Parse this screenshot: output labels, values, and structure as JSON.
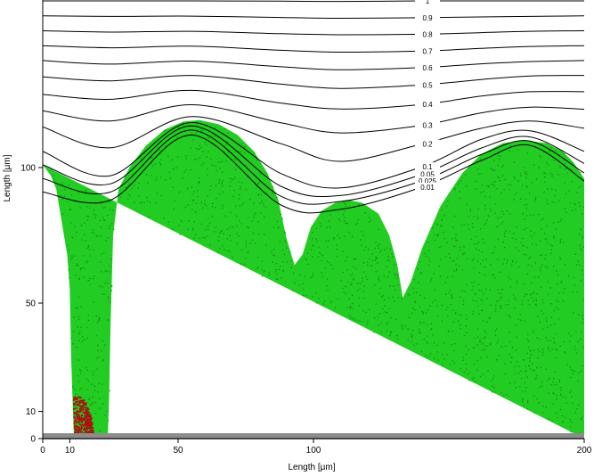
{
  "chart_data": {
    "type": "contour_scatter",
    "xlabel": "Length [μm]",
    "ylabel": "Length [μm]",
    "xlim": [
      0,
      200
    ],
    "ylim": [
      0,
      163
    ],
    "x_ticks": [
      0,
      10,
      50,
      100,
      200
    ],
    "y_ticks": [
      0,
      10,
      50,
      100
    ],
    "substrate_color": "#8c8c8c",
    "colony_colors": {
      "active": "#22cc22",
      "active_dark": "#118811",
      "inactive": "#aa1111"
    },
    "contour_levels": [
      "1",
      "0.9",
      "0.8",
      "0.7",
      "0.6",
      "0.5",
      "0.4",
      "0.3",
      "0.2",
      "0.1",
      "0.05",
      "0.025",
      "0.01"
    ],
    "contour_lines": [
      {
        "label": "1",
        "y": [
          161.5,
          161.5,
          161.5,
          161.4,
          161.3,
          161.5,
          161.5,
          161.5,
          161.5
        ]
      },
      {
        "label": "0.9",
        "y": [
          156,
          155.8,
          155.9,
          155.4,
          155.1,
          155.3,
          155.6,
          155.8,
          156
        ]
      },
      {
        "label": "0.8",
        "y": [
          150.5,
          150,
          150.3,
          149.4,
          149,
          149.2,
          149.8,
          150.3,
          150.5
        ]
      },
      {
        "label": "0.7",
        "y": [
          145,
          144.2,
          144.8,
          143.3,
          142.6,
          143,
          144,
          144.7,
          145
        ]
      },
      {
        "label": "0.6",
        "y": [
          139.5,
          138.2,
          139.3,
          137.2,
          136.1,
          136.9,
          138.3,
          139.1,
          139.5
        ]
      },
      {
        "label": "0.5",
        "y": [
          133.5,
          132,
          134,
          130.8,
          129.2,
          130.5,
          132.5,
          133.8,
          134
        ]
      },
      {
        "label": "0.4",
        "y": [
          127,
          125.2,
          128.5,
          123.8,
          121.6,
          123.3,
          126.4,
          128,
          128
        ]
      },
      {
        "label": "0.3",
        "y": [
          121,
          117.2,
          123.2,
          116.5,
          112.8,
          115.6,
          120.2,
          122.3,
          121.5
        ]
      },
      {
        "label": "0.2",
        "y": [
          115,
          107.3,
          118.8,
          108.8,
          102.3,
          108.7,
          114.5,
          117.2,
          114.5
        ]
      },
      {
        "label": "0.1",
        "y": [
          106,
          97,
          116.6,
          97.8,
          92.5,
          100.3,
          110.4,
          113.6,
          106
        ]
      },
      {
        "label": "0.05",
        "y": [
          101,
          94,
          115.4,
          93.1,
          89.7,
          97.5,
          107.2,
          111.3,
          101.5
        ]
      },
      {
        "label": "0.025",
        "y": [
          96,
          91,
          113.8,
          89.4,
          87.5,
          95.1,
          104.8,
          109.8,
          98
        ]
      },
      {
        "label": "0.01",
        "y": [
          91,
          88,
          112,
          86.2,
          84.6,
          92.8,
          102.6,
          108.2,
          95
        ]
      }
    ],
    "contour_x": [
      0,
      25,
      55,
      88,
      110,
      140,
      162,
      180,
      200
    ]
  }
}
